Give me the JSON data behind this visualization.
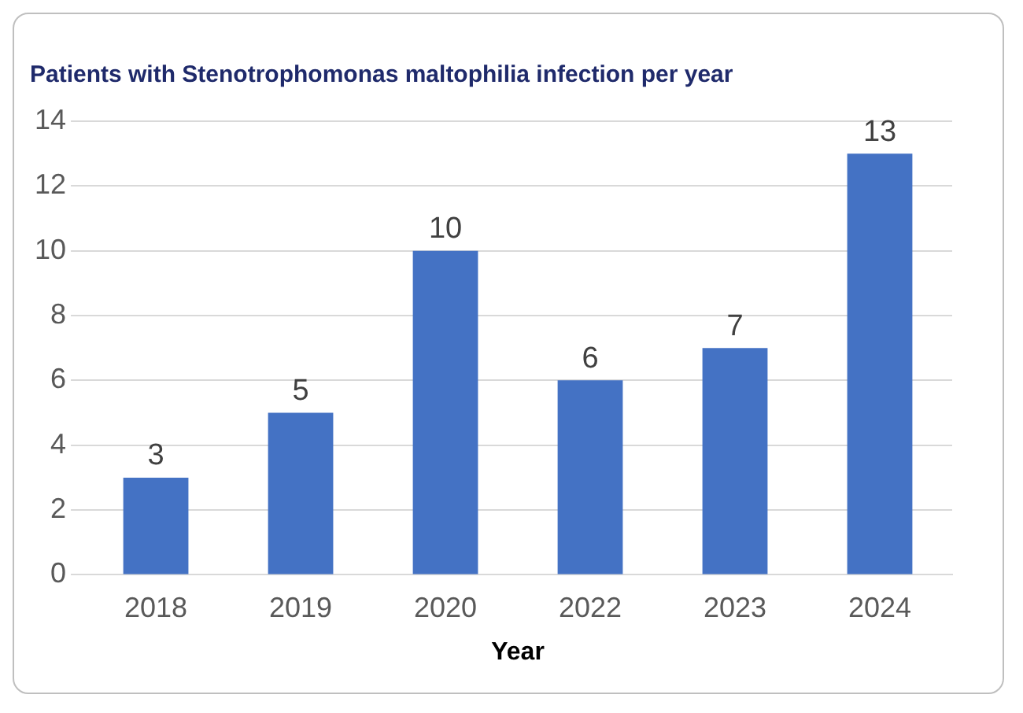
{
  "chart_data": {
    "type": "bar",
    "title": "Patients with Stenotrophomonas maltophilia infection per year",
    "xlabel": "Year",
    "categories": [
      "2018",
      "2019",
      "2020",
      "2022",
      "2023",
      "2024"
    ],
    "values": [
      3,
      5,
      10,
      6,
      7,
      13
    ],
    "color": "#4472c4",
    "ylim": [
      0,
      14
    ],
    "yticks": [
      0,
      2,
      4,
      6,
      8,
      10,
      12,
      14
    ],
    "grid": "y",
    "data_labels": true,
    "legend": false
  }
}
